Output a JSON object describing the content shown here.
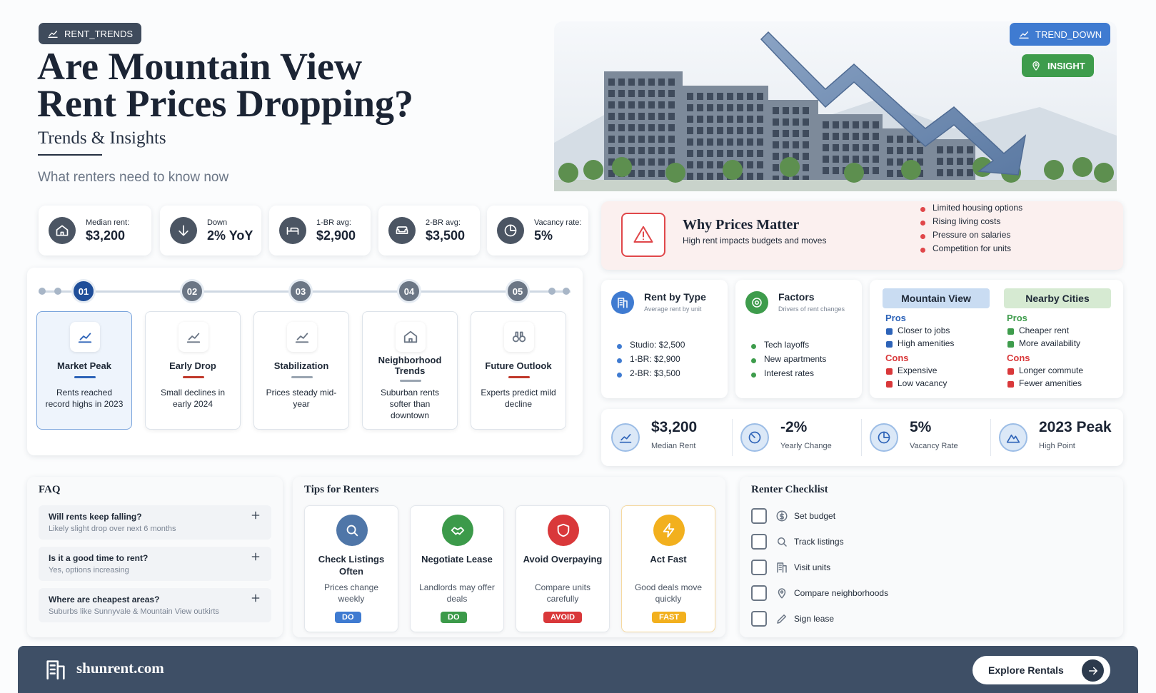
{
  "header": {
    "tag": "RENT_TRENDS",
    "title_lines": [
      "Are Mountain View",
      "Rent Prices Dropping?"
    ],
    "subtitle": "Trends & Insights",
    "tagline": "What renters need to know now"
  },
  "badges": {
    "trend": "TREND_DOWN",
    "insight": "INSIGHT"
  },
  "stats": [
    {
      "label": "Median rent:",
      "value": "$3,200"
    },
    {
      "label": "Down",
      "value": "2% YoY"
    },
    {
      "label": "1-BR avg:",
      "value": "$2,900"
    },
    {
      "label": "2-BR avg:",
      "value": "$3,500"
    },
    {
      "label": "Vacancy rate:",
      "value": "5%"
    }
  ],
  "why": {
    "title": "Why Prices Matter",
    "text": "High rent impacts budgets and moves",
    "bullets": [
      "Limited housing options",
      "Rising living costs",
      "Pressure on salaries",
      "Competition for units"
    ]
  },
  "timeline": [
    {
      "step": "01",
      "title": "Market Peak",
      "text": "Rents reached record highs in 2023"
    },
    {
      "step": "02",
      "title": "Early Drop",
      "text": "Small declines in early 2024"
    },
    {
      "step": "03",
      "title": "Stabilization",
      "text": "Prices steady mid-year"
    },
    {
      "step": "04",
      "title": "Neighborhood Trends",
      "text": "Suburban rents softer than downtown"
    },
    {
      "step": "05",
      "title": "Future Outlook",
      "text": "Experts predict mild decline"
    }
  ],
  "rent_by_type": {
    "title": "Rent by Type",
    "subtitle": "Average rent by unit",
    "items": [
      "Studio: $2,500",
      "1-BR: $2,900",
      "2-BR: $3,500"
    ]
  },
  "factors": {
    "title": "Factors",
    "subtitle": "Drivers of rent changes",
    "items": [
      "Tech layoffs",
      "New apartments",
      "Interest rates"
    ]
  },
  "comparison": [
    {
      "name": "Mountain View",
      "pros_label": "Pros",
      "pros": [
        "Closer to jobs",
        "High amenities"
      ],
      "cons_label": "Cons",
      "cons": [
        "Expensive",
        "Low vacancy"
      ]
    },
    {
      "name": "Nearby Cities",
      "pros_label": "Pros",
      "pros": [
        "Cheaper rent",
        "More availability"
      ],
      "cons_label": "Cons",
      "cons": [
        "Longer commute",
        "Fewer amenities"
      ]
    }
  ],
  "kpis": [
    {
      "value": "$3,200",
      "label": "Median Rent"
    },
    {
      "value": "-2%",
      "label": "Yearly Change"
    },
    {
      "value": "5%",
      "label": "Vacancy Rate"
    },
    {
      "value": "2023 Peak",
      "label": "High Point"
    }
  ],
  "faq": {
    "title": "FAQ",
    "items": [
      {
        "q": "Will rents keep falling?",
        "a": "Likely slight drop over next 6 months"
      },
      {
        "q": "Is it a good time to rent?",
        "a": "Yes, options increasing"
      },
      {
        "q": "Where are cheapest areas?",
        "a": "Suburbs like Sunnyvale & Mountain View outkirts"
      }
    ]
  },
  "tips": {
    "title": "Tips for Renters",
    "items": [
      {
        "title": "Check Listings Often",
        "text": "Prices change weekly",
        "tag": "DO"
      },
      {
        "title": "Negotiate Lease",
        "text": "Landlords may offer deals",
        "tag": "DO"
      },
      {
        "title": "Avoid Overpaying",
        "text": "Compare units carefully",
        "tag": "AVOID"
      },
      {
        "title": "Act Fast",
        "text": "Good deals move quickly",
        "tag": "FAST"
      }
    ]
  },
  "checklist": {
    "title": "Renter Checklist",
    "items": [
      "Set budget",
      "Track listings",
      "Visit units",
      "Compare neighborhoods",
      "Sign lease"
    ]
  },
  "footer": {
    "site": "shunrent.com",
    "button": "Explore Rentals"
  }
}
